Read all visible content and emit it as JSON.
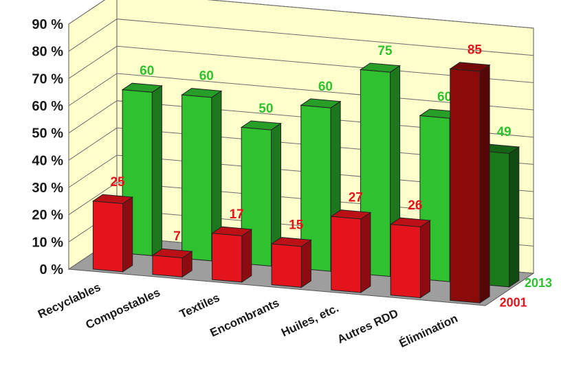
{
  "chart_data": {
    "type": "bar",
    "style": "3d-clustered",
    "categories": [
      "Recyclables",
      "Compostables",
      "Textiles",
      "Encombrants",
      "Huiles, etc.",
      "Autres RDD",
      "Élimination"
    ],
    "series": [
      {
        "name": "2001",
        "values": [
          25,
          7,
          17,
          15,
          27,
          26,
          85
        ],
        "color": "#e3141b",
        "highlight_color": "#8b0a0a"
      },
      {
        "name": "2013",
        "values": [
          60,
          60,
          50,
          60,
          75,
          60,
          49
        ],
        "color": "#2fc12f",
        "highlight_color": "#1a7a1a"
      }
    ],
    "data_labels": {
      "2001": [
        "25",
        "7",
        "17",
        "15",
        "27",
        "26",
        "85"
      ],
      "2013": [
        "60",
        "60",
        "50",
        "60",
        "75",
        "60",
        "49"
      ]
    },
    "y_ticks": [
      "0 %",
      "10 %",
      "20 %",
      "30 %",
      "40 %",
      "50 %",
      "60 %",
      "70 %",
      "80 %",
      "90 %"
    ],
    "ylim": [
      0,
      90
    ],
    "grid": true,
    "legend": [
      "2013",
      "2001"
    ],
    "legend_position": "right",
    "wall_color": "#ffffcc",
    "floor_color": "#9e9e9e"
  }
}
